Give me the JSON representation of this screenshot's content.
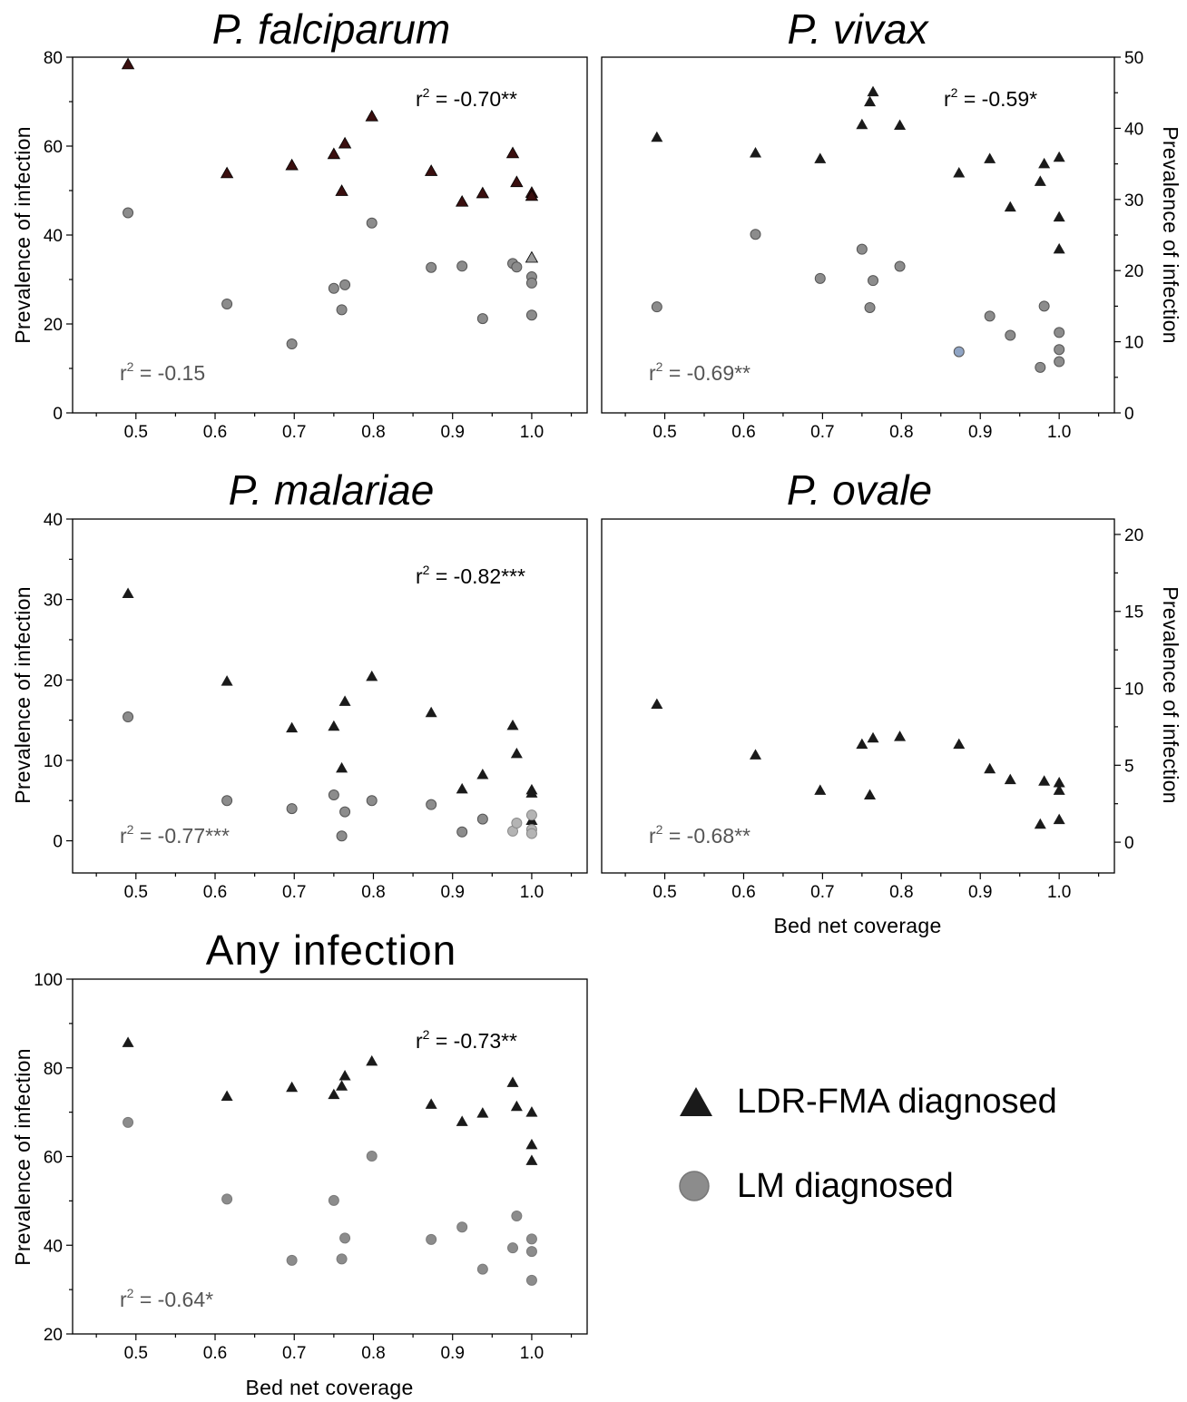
{
  "chart_data": [
    {
      "id": "pf",
      "type": "scatter",
      "title": "P. falciparum",
      "xlabel": "",
      "ylabel": "Prevalence of infection",
      "xlim": [
        0.42,
        1.07
      ],
      "ylim": [
        0,
        80
      ],
      "xticks": [
        "0.5",
        "0.6",
        "0.7",
        "0.8",
        "0.9",
        "1.0"
      ],
      "yticks": [
        "0",
        "20",
        "40",
        "60",
        "80"
      ],
      "yaxis": "left",
      "annotations": {
        "ldr": "r² = -0.70**",
        "lm": "r² = -0.15"
      },
      "series": [
        {
          "name": "LDR-FMA diagnosed",
          "marker": "triangle",
          "x": [
            0.49,
            0.615,
            0.697,
            0.75,
            0.76,
            0.764,
            0.798,
            0.873,
            0.912,
            0.938,
            0.976,
            0.981,
            1.0,
            1.0,
            1.0
          ],
          "y": [
            78.5,
            54,
            55.8,
            58.3,
            50,
            60.7,
            66.8,
            54.5,
            47.6,
            49.5,
            58.5,
            52,
            49.6,
            48.9,
            35
          ]
        },
        {
          "name": "LM diagnosed",
          "marker": "circle",
          "x": [
            0.49,
            0.615,
            0.697,
            0.75,
            0.76,
            0.764,
            0.798,
            0.873,
            0.912,
            0.938,
            0.976,
            0.981,
            1.0,
            1.0,
            1.0
          ],
          "y": [
            45,
            24.5,
            15.5,
            28,
            23.2,
            28.8,
            42.7,
            32.7,
            33,
            21.2,
            33.6,
            32.8,
            30.6,
            29.2,
            22
          ]
        }
      ]
    },
    {
      "id": "pv",
      "type": "scatter",
      "title": "P. vivax",
      "xlabel": "",
      "ylabel": "Prevalence of infection",
      "xlim": [
        0.42,
        1.07
      ],
      "ylim": [
        0,
        50
      ],
      "xticks": [
        "0.5",
        "0.6",
        "0.7",
        "0.8",
        "0.9",
        "1.0"
      ],
      "yticks": [
        "0",
        "10",
        "20",
        "30",
        "40",
        "50"
      ],
      "yaxis": "right",
      "annotations": {
        "ldr": "r² = -0.59*",
        "lm": "r² = -0.69**"
      },
      "series": [
        {
          "name": "LDR-FMA diagnosed",
          "marker": "triangle",
          "x": [
            0.49,
            0.615,
            0.697,
            0.75,
            0.76,
            0.764,
            0.798,
            0.873,
            0.912,
            0.938,
            0.976,
            0.981,
            1.0,
            1.0,
            1.0
          ],
          "y": [
            38.8,
            36.6,
            35.8,
            40.6,
            43.8,
            45.2,
            40.5,
            33.8,
            35.8,
            29,
            32.6,
            35.1,
            36,
            27.6,
            23.1
          ]
        },
        {
          "name": "LM diagnosed",
          "marker": "circle",
          "x": [
            0.49,
            0.615,
            0.697,
            0.75,
            0.76,
            0.764,
            0.798,
            0.873,
            0.912,
            0.938,
            0.976,
            0.981,
            1.0,
            1.0,
            1.0
          ],
          "y": [
            14.9,
            25.1,
            18.9,
            23,
            14.8,
            18.6,
            20.6,
            8.6,
            13.6,
            10.9,
            6.4,
            15,
            11.3,
            8.9,
            7.2
          ]
        }
      ]
    },
    {
      "id": "pm",
      "type": "scatter",
      "title": "P. malariae",
      "xlabel": "",
      "ylabel": "Prevalence of infection",
      "xlim": [
        0.42,
        1.07
      ],
      "ylim": [
        -4,
        40
      ],
      "xticks": [
        "0.5",
        "0.6",
        "0.7",
        "0.8",
        "0.9",
        "1.0"
      ],
      "yticks": [
        "0",
        "10",
        "20",
        "30",
        "40"
      ],
      "yaxis": "left",
      "annotations": {
        "ldr": "r² = -0.82***",
        "lm": "r² = -0.77***"
      },
      "series": [
        {
          "name": "LDR-FMA diagnosed",
          "marker": "triangle",
          "x": [
            0.49,
            0.615,
            0.697,
            0.75,
            0.76,
            0.764,
            0.798,
            0.873,
            0.912,
            0.938,
            0.976,
            0.981,
            1.0,
            1.0,
            1.0
          ],
          "y": [
            30.8,
            19.9,
            14.1,
            14.3,
            9.1,
            17.4,
            20.5,
            16,
            6.5,
            8.3,
            14.4,
            10.9,
            6.4,
            6,
            2.6
          ]
        },
        {
          "name": "LM diagnosed",
          "marker": "circle",
          "x": [
            0.49,
            0.615,
            0.697,
            0.75,
            0.76,
            0.764,
            0.798,
            0.873,
            0.912,
            0.938,
            0.976,
            0.981,
            1.0,
            1.0,
            1.0
          ],
          "y": [
            15.4,
            5,
            4,
            5.7,
            0.6,
            3.6,
            5,
            4.5,
            1.1,
            2.7,
            1.2,
            2.2,
            3.2,
            1.4,
            0.9
          ]
        }
      ]
    },
    {
      "id": "po",
      "type": "scatter",
      "title": "P. ovale",
      "xlabel": "Bed net coverage",
      "ylabel": "Prevalence of infection",
      "xlim": [
        0.42,
        1.07
      ],
      "ylim": [
        -2,
        21
      ],
      "xticks": [
        "0.5",
        "0.6",
        "0.7",
        "0.8",
        "0.9",
        "1.0"
      ],
      "yticks": [
        "0",
        "5",
        "10",
        "15",
        "20"
      ],
      "yaxis": "right",
      "annotations": {
        "ldr": "",
        "lm": "r² = -0.68**"
      },
      "series": [
        {
          "name": "LDR-FMA diagnosed",
          "marker": "triangle",
          "x": [
            0.49,
            0.615,
            0.697,
            0.75,
            0.76,
            0.764,
            0.798,
            0.873,
            0.912,
            0.938,
            0.976,
            0.981,
            1.0,
            1.0,
            1.0
          ],
          "y": [
            9,
            5.7,
            3.4,
            6.4,
            3.1,
            6.8,
            6.9,
            6.4,
            4.8,
            4.1,
            1.2,
            4,
            3.9,
            3.4,
            1.5
          ]
        }
      ]
    },
    {
      "id": "any",
      "type": "scatter",
      "title": "Any infection",
      "xlabel": "Bed net coverage",
      "ylabel": "Prevalence of infection",
      "xlim": [
        0.42,
        1.07
      ],
      "ylim": [
        20,
        100
      ],
      "xticks": [
        "0.5",
        "0.6",
        "0.7",
        "0.8",
        "0.9",
        "1.0"
      ],
      "yticks": [
        "20",
        "40",
        "60",
        "80",
        "100"
      ],
      "yaxis": "left",
      "annotations": {
        "ldr": "r² = -0.73**",
        "lm": "r² = -0.64*"
      },
      "series": [
        {
          "name": "LDR-FMA diagnosed",
          "marker": "triangle",
          "x": [
            0.49,
            0.615,
            0.697,
            0.75,
            0.76,
            0.764,
            0.798,
            0.873,
            0.912,
            0.938,
            0.976,
            0.981,
            1.0,
            1.0,
            1.0
          ],
          "y": [
            85.8,
            73.7,
            75.7,
            74.1,
            76,
            78.3,
            81.6,
            71.9,
            68,
            69.9,
            76.8,
            71.4,
            70.1,
            62.8,
            59.2
          ]
        },
        {
          "name": "LM diagnosed",
          "marker": "circle",
          "x": [
            0.49,
            0.615,
            0.697,
            0.75,
            0.76,
            0.764,
            0.798,
            0.873,
            0.912,
            0.938,
            0.976,
            0.981,
            1.0,
            1.0,
            1.0
          ],
          "y": [
            67.7,
            50.4,
            36.6,
            50.1,
            36.9,
            41.6,
            60.1,
            41.3,
            44.1,
            34.6,
            39.4,
            46.6,
            41.4,
            38.6,
            32.1
          ]
        }
      ]
    }
  ],
  "legend": [
    {
      "label": "LDR-FMA diagnosed",
      "marker": "triangle"
    },
    {
      "label": "LM diagnosed",
      "marker": "circle"
    }
  ],
  "colors": {
    "ldr": "#1a1a1a",
    "lm": "#8c8c8c",
    "lm_stroke": "#555555",
    "ldr_pf_fill": "#3a0f0f"
  }
}
